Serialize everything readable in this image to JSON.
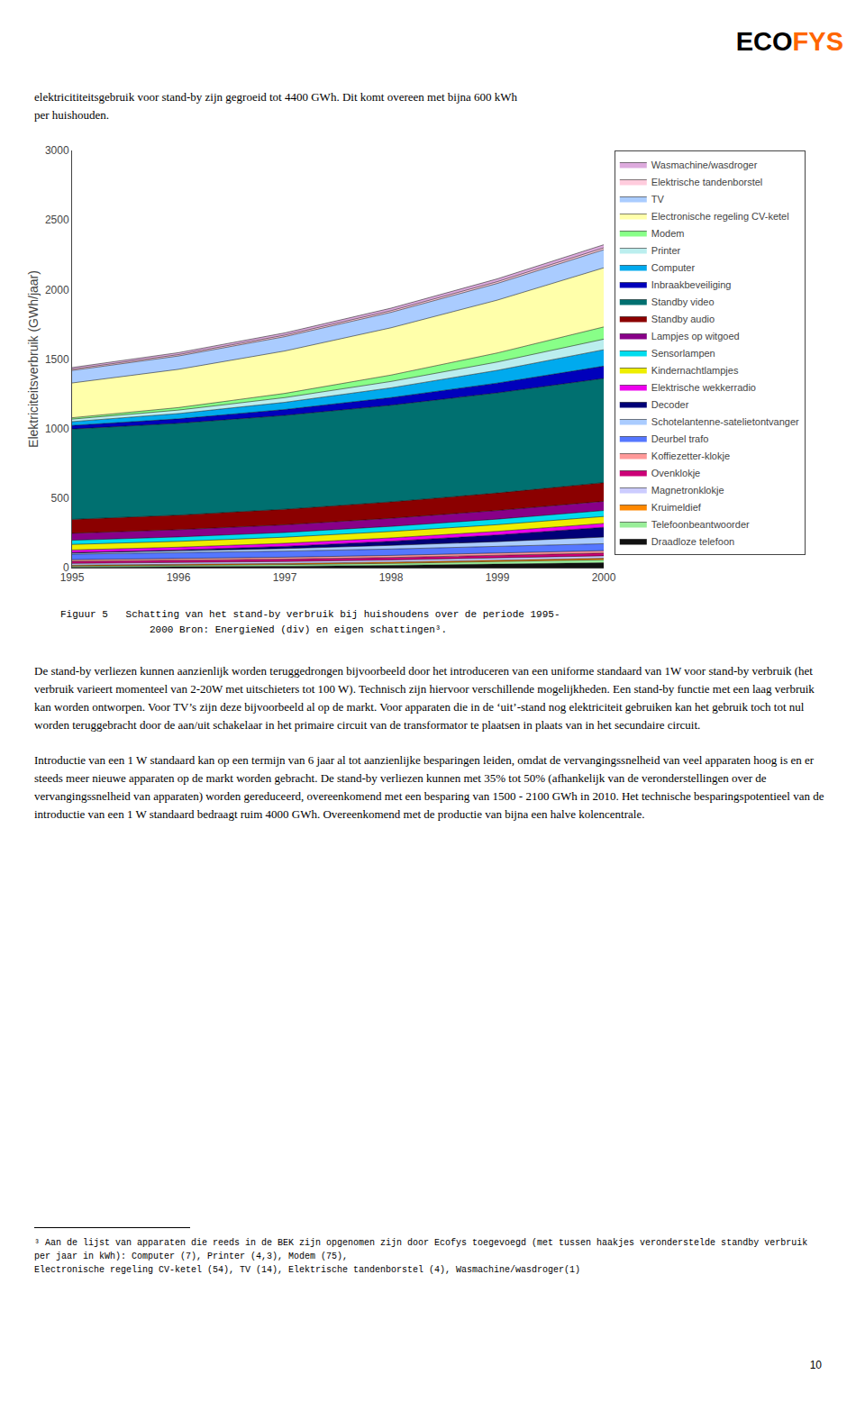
{
  "chart_data": {
    "type": "area",
    "stacked": true,
    "ylabel": "Elektriciteitsverbruik (GWh/jaar)",
    "x": [
      1995,
      1996,
      1997,
      1998,
      1999,
      2000
    ],
    "xlim": [
      1995,
      2000
    ],
    "xticks": [
      1995,
      1996,
      1997,
      1998,
      1999,
      2000
    ],
    "ylim": [
      0,
      3000
    ],
    "yticks": [
      0,
      500,
      1000,
      1500,
      2000,
      2500,
      3000
    ],
    "grid": false,
    "legend": "upper right",
    "series": [
      {
        "name": "Draadloze telefoon",
        "color": "#111111",
        "values": [
          4,
          6,
          10,
          16,
          24,
          35
        ]
      },
      {
        "name": "Telefoonbeantwoorder",
        "color": "#99EE99",
        "values": [
          8,
          10,
          12,
          15,
          18,
          22
        ]
      },
      {
        "name": "Kruimeldief",
        "color": "#FF8800",
        "values": [
          6,
          7,
          8,
          9,
          10,
          11
        ]
      },
      {
        "name": "Magnetronklokje",
        "color": "#CCCCFF",
        "values": [
          12,
          13,
          14,
          15,
          16,
          17
        ]
      },
      {
        "name": "Ovenklokje",
        "color": "#CC0077",
        "values": [
          15,
          16,
          17,
          18,
          19,
          20
        ]
      },
      {
        "name": "Koffiezetter-klokje",
        "color": "#FF9999",
        "values": [
          12,
          13,
          14,
          15,
          16,
          17
        ]
      },
      {
        "name": "Deurbel trafo",
        "color": "#5577FF",
        "values": [
          40,
          42,
          44,
          46,
          48,
          50
        ]
      },
      {
        "name": "Schotelantenne-satelietontvanger",
        "color": "#AACCFF",
        "values": [
          8,
          12,
          18,
          26,
          36,
          48
        ]
      },
      {
        "name": "Decoder",
        "color": "#000077",
        "values": [
          4,
          8,
          16,
          30,
          48,
          70
        ]
      },
      {
        "name": "Elektrische wekkerradio",
        "color": "#EE00EE",
        "values": [
          18,
          20,
          22,
          24,
          26,
          28
        ]
      },
      {
        "name": "Kindernachtlampjes",
        "color": "#EEEE00",
        "values": [
          40,
          42,
          44,
          46,
          48,
          50
        ]
      },
      {
        "name": "Sensorlampen",
        "color": "#00DDEE",
        "values": [
          30,
          32,
          34,
          37,
          40,
          43
        ]
      },
      {
        "name": "Lampjes op witgoed",
        "color": "#880088",
        "values": [
          50,
          52,
          55,
          58,
          62,
          66
        ]
      },
      {
        "name": "Standby audio",
        "color": "#8B0000",
        "values": [
          100,
          105,
          112,
          118,
          126,
          134
        ]
      },
      {
        "name": "Standby video",
        "color": "#007070",
        "values": [
          650,
          660,
          675,
          695,
          720,
          750
        ]
      },
      {
        "name": "Inbraakbeveiliging",
        "color": "#0000BB",
        "values": [
          25,
          32,
          42,
          55,
          70,
          88
        ]
      },
      {
        "name": "Computer",
        "color": "#00AAEE",
        "values": [
          28,
          38,
          52,
          70,
          92,
          118
        ]
      },
      {
        "name": "Printer",
        "color": "#BBEEEE",
        "values": [
          18,
          25,
          34,
          46,
          60,
          76
        ]
      },
      {
        "name": "Modem",
        "color": "#88FF88",
        "values": [
          10,
          18,
          30,
          46,
          65,
          88
        ]
      },
      {
        "name": "Electronische regeling CV-ketel",
        "color": "#FFFFAA",
        "values": [
          250,
          275,
          305,
          340,
          380,
          425
        ]
      },
      {
        "name": "TV",
        "color": "#AACCFF",
        "values": [
          90,
          96,
          103,
          111,
          120,
          130
        ]
      },
      {
        "name": "Elektrische tandenborstel",
        "color": "#FFCCDD",
        "values": [
          9,
          10,
          11,
          12,
          13,
          14
        ]
      },
      {
        "name": "Wasmachine/wasdroger",
        "color": "#DDAADD",
        "values": [
          12,
          14,
          16,
          18,
          20,
          22
        ]
      }
    ],
    "annotations": [
      {
        "text": "ECO"
      },
      {
        "text": "FYS",
        "color": "#FF6600"
      },
      {
        "text": "elektricititeitsgebruik voor stand-by zijn gegroeid tot 4400 GWh. Dit komt overeen met bijna 600 kWh"
      },
      {
        "text": "per huishouden."
      },
      {
        "text": "Figuur 5   Schatting van het stand-by verbruik bij huishoudens over de periode 1995-"
      },
      {
        "text": "               2000 Bron: EnergieNed (div) en eigen schattingen³."
      },
      {
        "text": "De stand-by verliezen kunnen aanzienlijk worden teruggedrongen bijvoorbeeld door het introduceren van een uniforme standaard van 1W voor stand-by verbruik (het verbruik varieert momenteel van 2-20W met uitschieters tot 100 W). Technisch zijn hiervoor verschillende mogelijkheden. Een stand-by functie met een laag verbruik kan worden ontworpen. Voor TV’s zijn deze bijvoorbeeld al op de markt. Voor apparaten die in de ‘uit’-stand nog elektriciteit gebruiken kan het gebruik toch tot nul worden teruggebracht door de aan/uit schakelaar in het primaire circuit van de transformator te plaatsen in plaats van in het secundaire circuit."
      },
      {
        "text": "Introductie van een 1 W standaard kan op een termijn van 6 jaar al tot aanzienlijke besparingen leiden, omdat de vervangingssnelheid van veel apparaten hoog is en er steeds meer nieuwe apparaten op de markt worden gebracht. De stand-by verliezen kunnen met 35% tot 50% (afhankelijk van de veronderstellingen over de vervangingssnelheid van apparaten) worden gereduceerd, overeenkomend met een besparing van 1500 - 2100 GWh in 2010. Het technische besparingspotentieel van de introductie van een 1 W standaard bedraagt ruim 4000 GWh. Overeenkomend met de productie van bijna een halve kolencentrale."
      },
      {
        "text": "³ Aan de lijst van apparaten die reeds in de BEK zijn opgenomen zijn door Ecofys toegevoegd (met tussen haakjes veronderstelde standby verbruik per jaar in kWh): Computer (7), Printer (4,3), Modem (75),"
      },
      {
        "text": "Electronische regeling CV-ketel (54), TV (14), Elektrische tandenborstel (4), Wasmachine/wasdroger(1)"
      },
      {
        "text": "10"
      }
    ]
  }
}
